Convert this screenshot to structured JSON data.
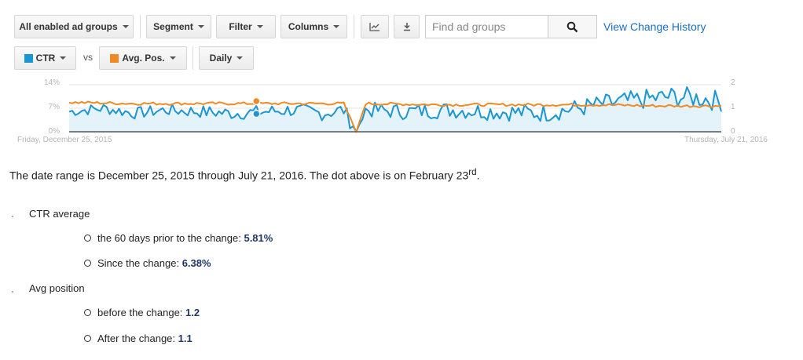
{
  "toolbar": {
    "adgroups_filter": "All enabled ad groups",
    "segment": "Segment",
    "filter": "Filter",
    "columns": "Columns",
    "search_placeholder": "Find ad groups",
    "view_change_history": "View Change History"
  },
  "metrics": {
    "metric1": "CTR",
    "metric1_color": "#1a96d4",
    "vs": "vs",
    "metric2": "Avg. Pos.",
    "metric2_color": "#f08a24",
    "period": "Daily"
  },
  "chart": {
    "left_ticks": [
      "14%",
      "7%",
      "0%"
    ],
    "right_ticks": [
      "2",
      "1",
      "0"
    ],
    "start_label": "Friday, December 25, 2015",
    "end_label": "Thursday, July 21, 2016"
  },
  "chart_data": {
    "type": "line",
    "x_range": [
      "2015-12-25",
      "2016-07-21"
    ],
    "y_left": {
      "label": "CTR",
      "range": [
        0,
        14
      ],
      "unit": "%"
    },
    "y_right": {
      "label": "Avg. Pos.",
      "range": [
        0,
        2
      ]
    },
    "grid": true,
    "series": [
      {
        "name": "CTR",
        "axis": "left",
        "color": "#1a96d4",
        "fill": true,
        "points": [
          [
            "2015-12-25",
            6.0
          ],
          [
            "2016-01-05",
            7.0
          ],
          [
            "2016-01-15",
            5.5
          ],
          [
            "2016-01-25",
            6.5
          ],
          [
            "2016-02-05",
            6.0
          ],
          [
            "2016-02-15",
            5.5
          ],
          [
            "2016-02-23",
            5.8
          ],
          [
            "2016-03-05",
            6.5
          ],
          [
            "2016-03-15",
            5.5
          ],
          [
            "2016-03-22",
            6.5
          ],
          [
            "2016-03-26",
            0.0
          ],
          [
            "2016-03-29",
            6.5
          ],
          [
            "2016-04-10",
            6.0
          ],
          [
            "2016-04-25",
            6.5
          ],
          [
            "2016-05-10",
            6.0
          ],
          [
            "2016-05-25",
            5.5
          ],
          [
            "2016-06-05",
            7.0
          ],
          [
            "2016-06-15",
            8.5
          ],
          [
            "2016-06-25",
            9.5
          ],
          [
            "2016-07-05",
            10.5
          ],
          [
            "2016-07-15",
            10.0
          ],
          [
            "2016-07-21",
            9.0
          ]
        ]
      },
      {
        "name": "Avg. Pos.",
        "axis": "right",
        "color": "#f08a24",
        "fill": false,
        "points": [
          [
            "2015-12-25",
            1.25
          ],
          [
            "2016-01-15",
            1.2
          ],
          [
            "2016-02-05",
            1.2
          ],
          [
            "2016-02-23",
            1.2
          ],
          [
            "2016-03-15",
            1.2
          ],
          [
            "2016-03-22",
            1.2
          ],
          [
            "2016-03-26",
            0.0
          ],
          [
            "2016-03-29",
            1.2
          ],
          [
            "2016-04-20",
            1.15
          ],
          [
            "2016-05-15",
            1.15
          ],
          [
            "2016-06-10",
            1.15
          ],
          [
            "2016-07-01",
            1.1
          ],
          [
            "2016-07-21",
            1.1
          ]
        ]
      }
    ],
    "markers": [
      {
        "date": "2016-02-23"
      }
    ]
  },
  "caption": {
    "text": "The date range is December 25, 2015 through July 21, 2016. The dot above is on February 23",
    "sup": "rd",
    "end": "."
  },
  "stats": {
    "ctr_heading": "CTR average",
    "ctr_before_label": "the 60 days prior to the change: ",
    "ctr_before_value": "5.81%",
    "ctr_after_label": "Since the change: ",
    "ctr_after_value": "6.38%",
    "pos_heading": "Avg position",
    "pos_before_label": "before the change: ",
    "pos_before_value": "1.2",
    "pos_after_label": "After the change: ",
    "pos_after_value": "1.1"
  }
}
